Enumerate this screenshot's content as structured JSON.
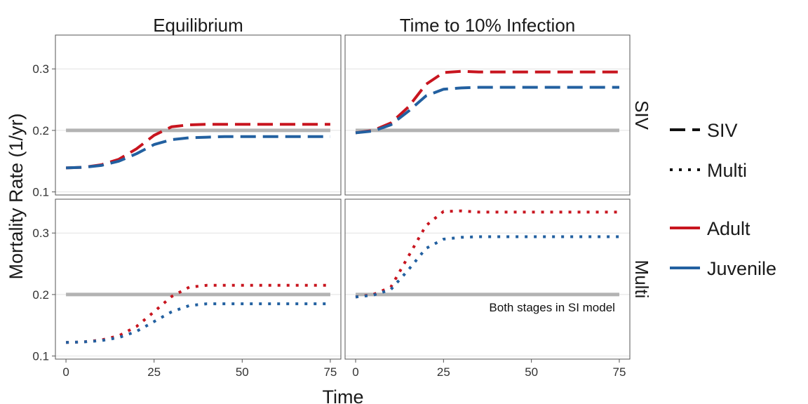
{
  "chart_data": {
    "type": "line",
    "ylabel": "Mortality Rate (1/yr)",
    "xlabel": "Time",
    "col_facets": [
      "Equilibrium",
      "Time to 10% Infection"
    ],
    "row_facets": [
      "SIV",
      "Multi"
    ],
    "xlim": [
      -3,
      78
    ],
    "xticks": [
      0,
      25,
      50,
      75
    ],
    "ylim": [
      0.095,
      0.355
    ],
    "yticks": [
      0.1,
      0.2,
      0.3
    ],
    "grid": true,
    "legend_position": "right",
    "legend": {
      "linetype": [
        {
          "label": "SIV",
          "dash": "dashed"
        },
        {
          "label": "Multi",
          "dash": "dotted"
        }
      ],
      "color": [
        {
          "label": "Adult",
          "color": "#c8151f"
        },
        {
          "label": "Juvenile",
          "color": "#2260a0"
        }
      ]
    },
    "reference_line": {
      "y": 0.2,
      "color": "#b3b3b3"
    },
    "annotation": {
      "text": "Both stages in SI model",
      "row": 1,
      "col": 1,
      "x": 75,
      "y": 0.185
    },
    "x": [
      0,
      5,
      10,
      15,
      20,
      25,
      30,
      35,
      40,
      45,
      50,
      55,
      60,
      65,
      70,
      75
    ],
    "panels": [
      {
        "row": 0,
        "col": 0,
        "linetype": "dashed",
        "series": [
          {
            "name": "Adult",
            "color": "#c8151f",
            "values": [
              0.139,
              0.14,
              0.144,
              0.153,
              0.17,
              0.192,
              0.206,
              0.209,
              0.21,
              0.21,
              0.21,
              0.21,
              0.21,
              0.21,
              0.21,
              0.21
            ]
          },
          {
            "name": "Juvenile",
            "color": "#2260a0",
            "values": [
              0.139,
              0.14,
              0.143,
              0.15,
              0.162,
              0.177,
              0.185,
              0.188,
              0.189,
              0.19,
              0.19,
              0.19,
              0.19,
              0.19,
              0.19,
              0.19
            ]
          }
        ]
      },
      {
        "row": 0,
        "col": 1,
        "linetype": "dashed",
        "series": [
          {
            "name": "Adult",
            "color": "#c8151f",
            "values": [
              0.196,
              0.2,
              0.212,
              0.238,
              0.275,
              0.294,
              0.296,
              0.295,
              0.295,
              0.295,
              0.295,
              0.295,
              0.295,
              0.295,
              0.295,
              0.295
            ]
          },
          {
            "name": "Juvenile",
            "color": "#2260a0",
            "values": [
              0.196,
              0.199,
              0.209,
              0.231,
              0.256,
              0.267,
              0.269,
              0.27,
              0.27,
              0.27,
              0.27,
              0.27,
              0.27,
              0.27,
              0.27,
              0.27
            ]
          }
        ]
      },
      {
        "row": 1,
        "col": 0,
        "linetype": "dotted",
        "series": [
          {
            "name": "Adult",
            "color": "#c8151f",
            "values": [
              0.122,
              0.123,
              0.126,
              0.133,
              0.148,
              0.172,
              0.197,
              0.212,
              0.215,
              0.215,
              0.215,
              0.215,
              0.215,
              0.215,
              0.215,
              0.215
            ]
          },
          {
            "name": "Juvenile",
            "color": "#2260a0",
            "values": [
              0.122,
              0.123,
              0.125,
              0.13,
              0.14,
              0.156,
              0.172,
              0.182,
              0.185,
              0.185,
              0.185,
              0.185,
              0.185,
              0.185,
              0.185,
              0.185
            ]
          }
        ]
      },
      {
        "row": 1,
        "col": 1,
        "linetype": "dotted",
        "series": [
          {
            "name": "Adult",
            "color": "#c8151f",
            "values": [
              0.196,
              0.2,
              0.212,
              0.262,
              0.312,
              0.335,
              0.336,
              0.334,
              0.334,
              0.334,
              0.334,
              0.334,
              0.334,
              0.334,
              0.334,
              0.334
            ]
          },
          {
            "name": "Juvenile",
            "color": "#2260a0",
            "values": [
              0.196,
              0.199,
              0.208,
              0.24,
              0.275,
              0.29,
              0.293,
              0.294,
              0.294,
              0.294,
              0.294,
              0.294,
              0.294,
              0.294,
              0.294,
              0.294
            ]
          }
        ]
      }
    ]
  }
}
